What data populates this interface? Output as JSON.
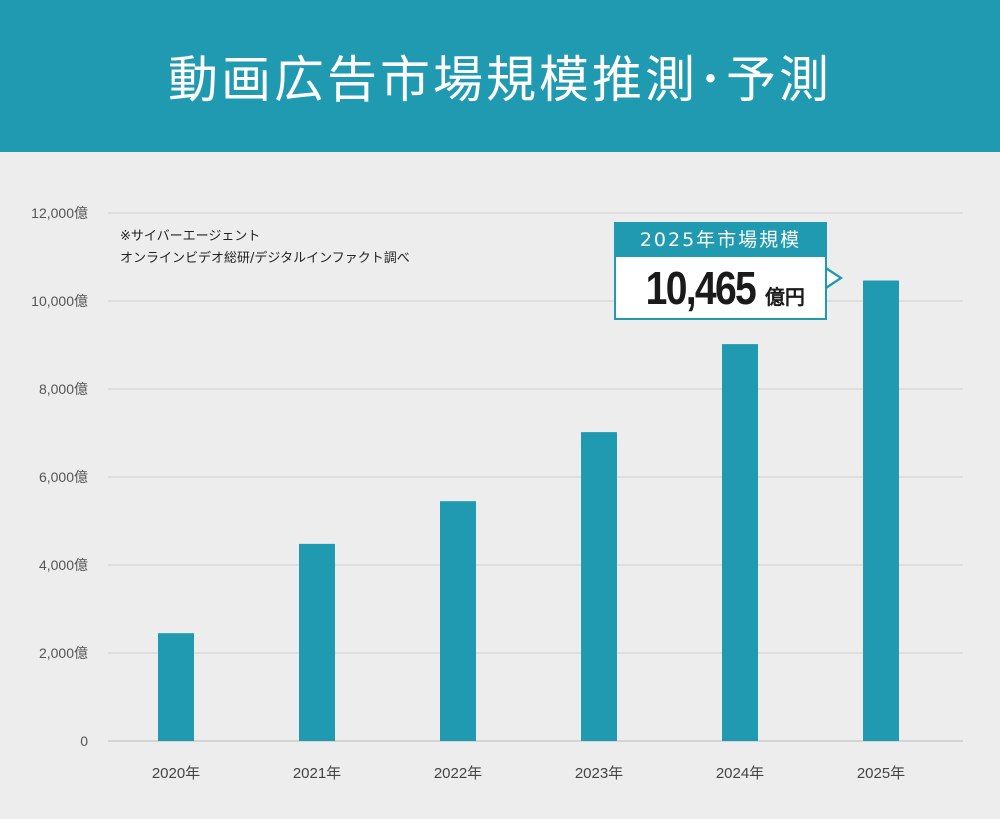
{
  "chart_data": {
    "type": "bar",
    "title": "動画広告市場規模推測･予測",
    "categories": [
      "2020年",
      "2021年",
      "2022年",
      "2023年",
      "2024年",
      "2025年"
    ],
    "values": [
      2450,
      4480,
      5450,
      7020,
      9020,
      10465
    ],
    "ylim": [
      0,
      12000
    ],
    "yticks": [
      0,
      2000,
      4000,
      6000,
      8000,
      10000,
      12000
    ],
    "ytick_labels": [
      "0",
      "2,000億",
      "4,000億",
      "6,000億",
      "8,000億",
      "10,000億",
      "12,000億"
    ],
    "grid": true,
    "bar_color": "#1f9ab0",
    "note": [
      "※サイバーエージェント",
      "オンラインビデオ総研/デジタルインファクト調べ"
    ],
    "callout": {
      "title": "2025年市場規模",
      "value": "10,465",
      "unit": "億円"
    }
  }
}
